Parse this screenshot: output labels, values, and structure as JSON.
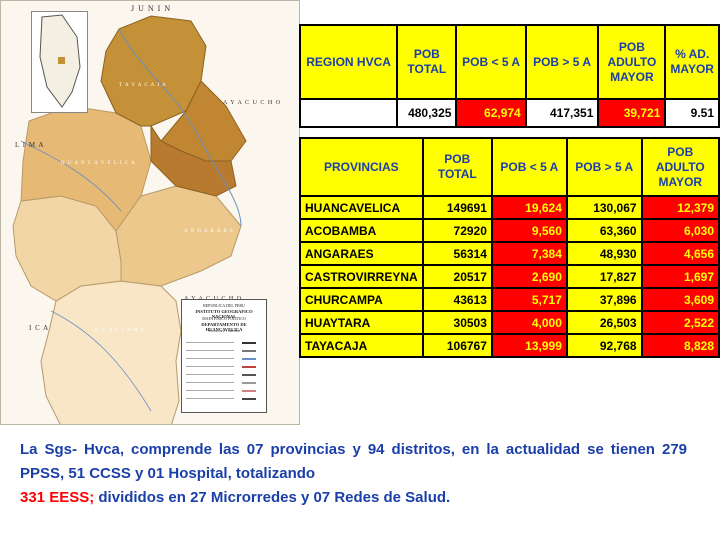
{
  "map": {
    "labels": {
      "junin": "J U N I N",
      "lima": "L I M A",
      "ica": "I C A",
      "ayacucho_top": "A Y A C U C H O",
      "ayacucho_mid": "A Y A C U C H O",
      "tayacaja": "T A Y A C A J A",
      "huancavelica": "H U A N C A V E L I C A",
      "angaraes": "A N G A R A E S",
      "huaytara": "H U A Y T A R A"
    },
    "colors": {
      "tayacaja": "#c49038",
      "churcampa": "#c08632",
      "acobamba": "#b87a2e",
      "huancavelica": "#e6b974",
      "angaraes": "#ecc88c",
      "castrovirreyna": "#f2d6a6",
      "huaytara": "#f8e6c6",
      "outside": "#fbf7ee"
    },
    "legend": {
      "title_lines": [
        "REPUBLICA DEL PERU",
        "INSTITUTO GEOGRAFICO NACIONAL",
        "MAPA FISICO POLITICO",
        "DEPARTAMENTO DE HUANCAVELICA",
        "ESCALA 1:1 000 000"
      ]
    }
  },
  "summary_table": {
    "headers": [
      "REGION HVCA",
      "POB TOTAL",
      "POB < 5 A",
      "POB > 5 A",
      "POB ADULTO MAYOR",
      "% AD. MAYOR"
    ],
    "values": [
      "",
      "480,325",
      "62,974",
      "417,351",
      "39,721",
      "9.51"
    ]
  },
  "provinces_table": {
    "headers": [
      "PROVINCIAS",
      "POB TOTAL",
      "POB < 5 A",
      "POB > 5 A",
      "POB ADULTO MAYOR"
    ],
    "rows": [
      {
        "name": "HUANCAVELICA",
        "total": "149691",
        "under5": "19,624",
        "over5": "130,067",
        "elderly": "12,379"
      },
      {
        "name": "ACOBAMBA",
        "total": "72920",
        "under5": "9,560",
        "over5": "63,360",
        "elderly": "6,030"
      },
      {
        "name": "ANGARAES",
        "total": "56314",
        "under5": "7,384",
        "over5": "48,930",
        "elderly": "4,656"
      },
      {
        "name": "CASTROVIRREYNA",
        "total": "20517",
        "under5": "2,690",
        "over5": "17,827",
        "elderly": "1,697"
      },
      {
        "name": "CHURCAMPA",
        "total": "43613",
        "under5": "5,717",
        "over5": "37,896",
        "elderly": "3,609"
      },
      {
        "name": "HUAYTARA",
        "total": "30503",
        "under5": "4,000",
        "over5": "26,503",
        "elderly": "2,522"
      },
      {
        "name": "TAYACAJA",
        "total": "106767",
        "under5": "13,999",
        "over5": "92,768",
        "elderly": "8,828"
      }
    ]
  },
  "paragraph": {
    "part1": "La Sgs- Hvca, comprende las 07 provincias y 94 distritos, en la actualidad se tienen 279 PPSS, 51 CCSS y 01 Hospital, totalizando",
    "highlight": "331 EESS;",
    "part2": "divididos en 27 Microrredes y 07 Redes de Salud."
  }
}
